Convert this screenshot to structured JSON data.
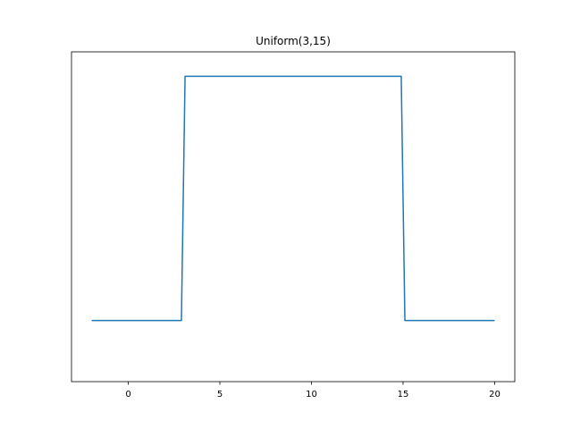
{
  "chart_data": {
    "type": "line",
    "title": "Uniform(3,15)",
    "xlabel": "",
    "ylabel": "",
    "xlim": [
      -3.1,
      21.1
    ],
    "ylim": [
      -0.25,
      1.1
    ],
    "grid": false,
    "legend": "none",
    "x_ticks": [
      0,
      5,
      10,
      15,
      20
    ],
    "x_tick_labels": [
      "0",
      "5",
      "10",
      "15",
      "20"
    ],
    "y_ticks_visible": false,
    "series": [
      {
        "color": "#1f77b4",
        "x": [
          -2,
          2.9,
          3.0,
          3.1,
          14.9,
          15.0,
          15.1,
          20
        ],
        "y": [
          0,
          0,
          0.5,
          1,
          1,
          0.5,
          0,
          0
        ]
      }
    ]
  }
}
